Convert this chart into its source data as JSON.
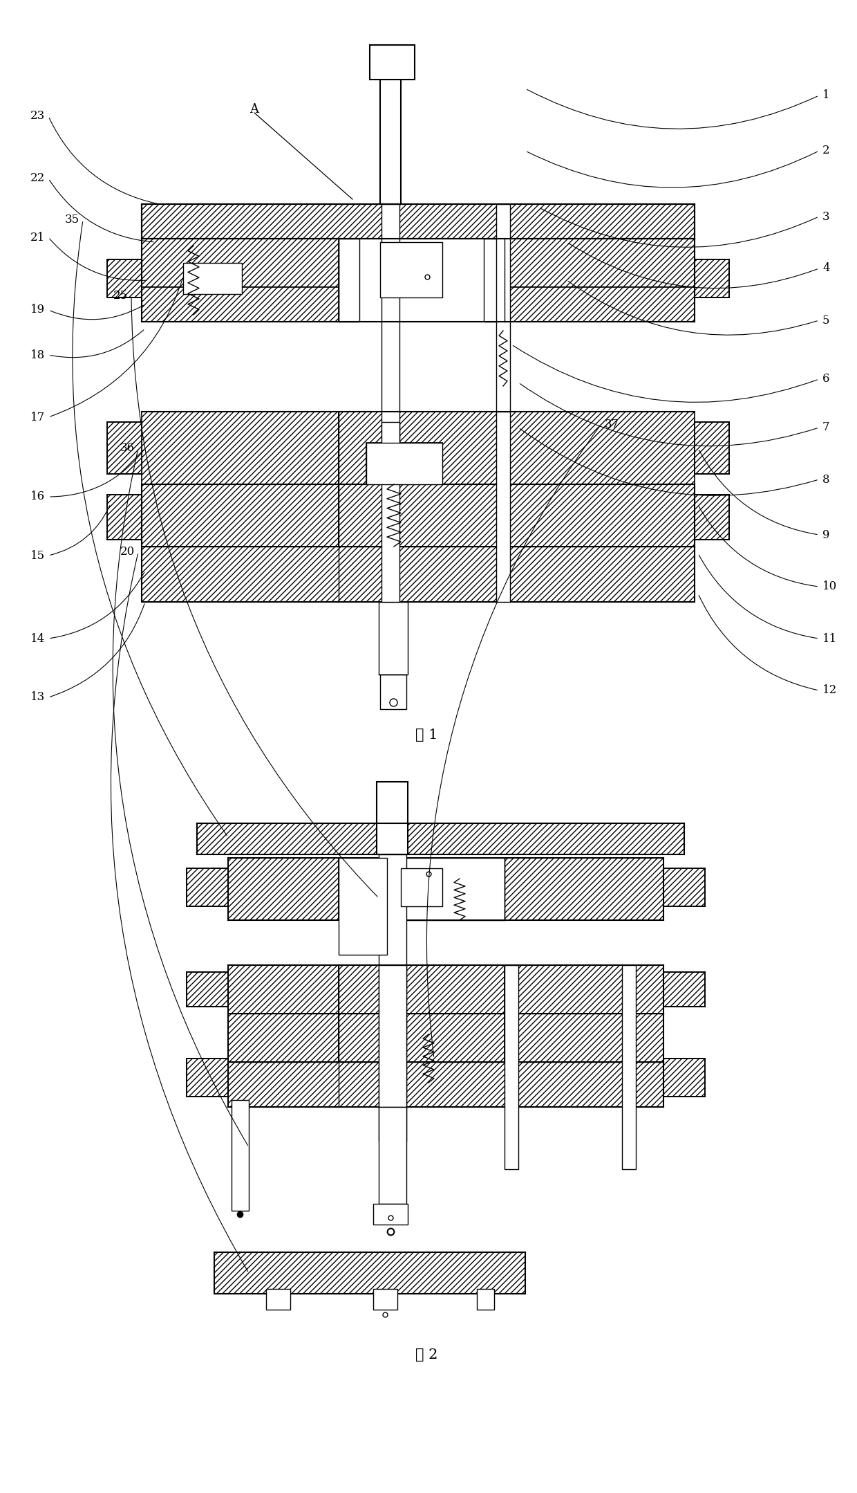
{
  "background_color": "#ffffff",
  "fig1_caption": "图 1",
  "fig2_caption": "图 2",
  "label_A": "A",
  "fig1_left_labels": [
    [
      "23",
      70,
      1990
    ],
    [
      "22",
      70,
      1900
    ],
    [
      "21",
      70,
      1815
    ],
    [
      "19",
      70,
      1710
    ],
    [
      "18",
      70,
      1645
    ],
    [
      "17",
      70,
      1555
    ],
    [
      "16",
      70,
      1440
    ],
    [
      "15",
      70,
      1355
    ],
    [
      "14",
      70,
      1235
    ],
    [
      "13",
      70,
      1150
    ]
  ],
  "fig1_right_labels": [
    [
      "1",
      1185,
      2020
    ],
    [
      "2",
      1185,
      1940
    ],
    [
      "3",
      1185,
      1845
    ],
    [
      "4",
      1185,
      1770
    ],
    [
      "5",
      1185,
      1695
    ],
    [
      "6",
      1185,
      1610
    ],
    [
      "7",
      1185,
      1540
    ],
    [
      "8",
      1185,
      1465
    ],
    [
      "9",
      1185,
      1385
    ],
    [
      "10",
      1185,
      1310
    ],
    [
      "11",
      1185,
      1235
    ],
    [
      "12",
      1185,
      1160
    ]
  ],
  "fig2_labels": [
    [
      "35",
      120,
      1840
    ],
    [
      "25",
      190,
      1730
    ],
    [
      "36",
      200,
      1510
    ],
    [
      "20",
      200,
      1360
    ],
    [
      "37",
      870,
      1545
    ]
  ]
}
